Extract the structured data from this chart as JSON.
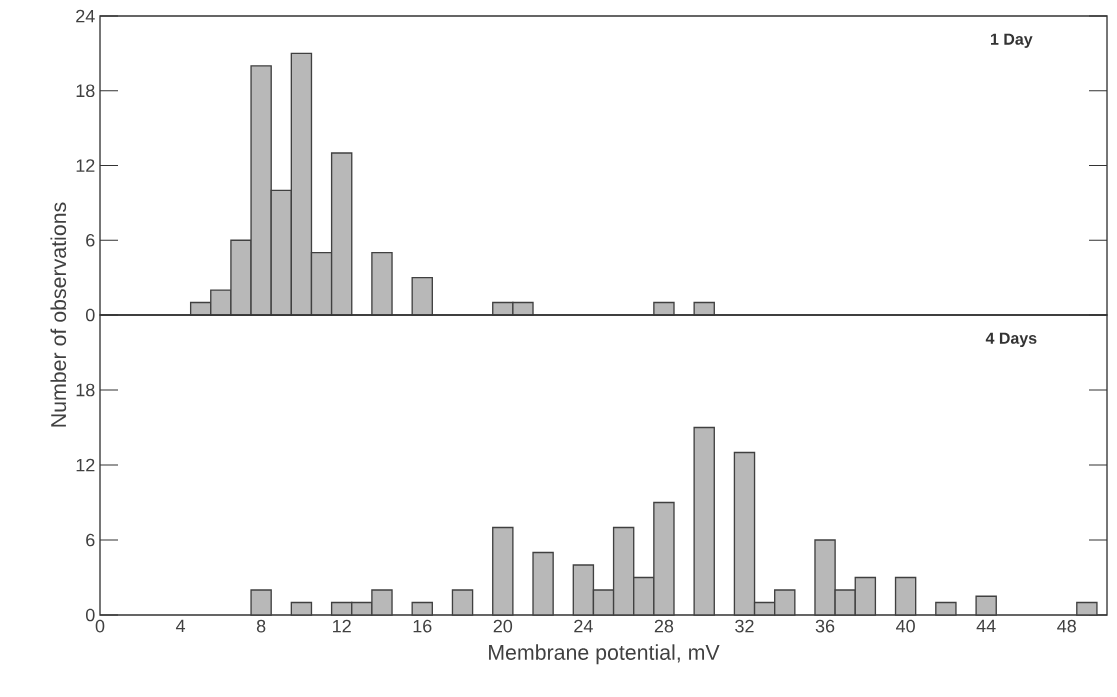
{
  "chart_data": [
    {
      "type": "histogram",
      "title": "1 Day",
      "ylabel": "Number of observations",
      "bins": [
        4.5,
        5.5,
        6.5,
        7.5,
        8.5,
        9.5,
        10.5,
        11.5,
        12.5,
        13.5,
        14.5,
        15.5,
        16.5,
        17.5,
        18.5,
        19.5,
        20.5,
        21.5,
        22.5,
        23.5,
        24.5,
        25.5,
        26.5,
        27.5,
        28.5,
        29.5,
        30.5,
        31.5,
        32.5,
        33.5,
        34.5,
        35.5,
        36.5,
        37.5,
        38.5,
        39.5,
        40.5,
        41.5,
        42.5,
        43.5,
        44.5,
        45.5,
        46.5,
        47.5,
        48.5,
        49.5
      ],
      "values": [
        1,
        2,
        6,
        20,
        10,
        21,
        5,
        13,
        0,
        5,
        0,
        3,
        0,
        0,
        0,
        1,
        1,
        0,
        0,
        0,
        0,
        0,
        0,
        1,
        0,
        1,
        0,
        0,
        0,
        0,
        0,
        0,
        0,
        0,
        0,
        0,
        0,
        0,
        0,
        0,
        0,
        0,
        0,
        0,
        0
      ],
      "color": "#b8b8b8",
      "xlim": [
        0,
        50
      ],
      "ylim": [
        0,
        24
      ],
      "yticks": [
        0,
        6,
        12,
        18,
        24
      ],
      "tick_labels": "y"
    },
    {
      "type": "histogram",
      "title": "4 Days",
      "xlabel": "Membrane potential, mV",
      "bins": [
        4.5,
        5.5,
        6.5,
        7.5,
        8.5,
        9.5,
        10.5,
        11.5,
        12.5,
        13.5,
        14.5,
        15.5,
        16.5,
        17.5,
        18.5,
        19.5,
        20.5,
        21.5,
        22.5,
        23.5,
        24.5,
        25.5,
        26.5,
        27.5,
        28.5,
        29.5,
        30.5,
        31.5,
        32.5,
        33.5,
        34.5,
        35.5,
        36.5,
        37.5,
        38.5,
        39.5,
        40.5,
        41.5,
        42.5,
        43.5,
        44.5,
        45.5,
        46.5,
        47.5,
        48.5,
        49.5
      ],
      "values": [
        0,
        0,
        0,
        2,
        0,
        1,
        0,
        1,
        1,
        2,
        0,
        1,
        0,
        2,
        0,
        7,
        0,
        5,
        0,
        4,
        2,
        7,
        3,
        9,
        0,
        15,
        0,
        13,
        1,
        2,
        0,
        6,
        2,
        3,
        0,
        3,
        0,
        1,
        0,
        1.5,
        0,
        0,
        0,
        0,
        1
      ],
      "color": "#b8b8b8",
      "xlim": [
        0,
        50
      ],
      "ylim": [
        0,
        24
      ],
      "xticks": [
        0,
        4,
        8,
        12,
        16,
        20,
        24,
        28,
        32,
        36,
        40,
        44,
        48
      ],
      "yticks": [
        0,
        6,
        12,
        18
      ]
    }
  ]
}
